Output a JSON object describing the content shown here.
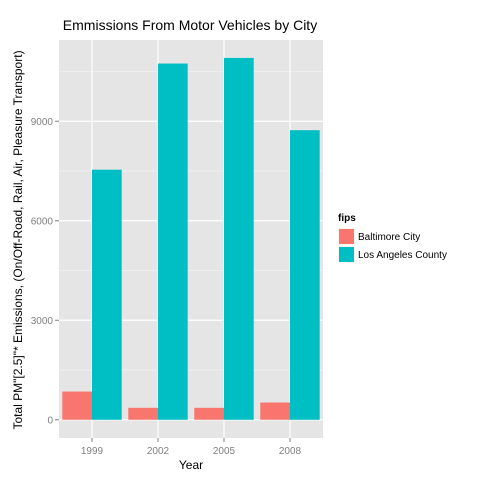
{
  "chart_data": {
    "type": "bar",
    "title": "Emmissions From Motor Vehicles by City",
    "xlabel": "Year",
    "ylabel": "Total PM\"[2.5]\"* Emissions, (On/Off-Road, Rail, Air, Pleasure Transport)",
    "categories": [
      "1999",
      "2002",
      "2005",
      "2008"
    ],
    "series": [
      {
        "name": "Baltimore City",
        "color": "#F8766D",
        "values": [
          850,
          360,
          360,
          520
        ]
      },
      {
        "name": "Los Angeles County",
        "color": "#00BFC4",
        "values": [
          7540,
          10740,
          10910,
          8730
        ]
      }
    ],
    "yticks": [
      0,
      3000,
      6000,
      9000
    ],
    "ylim": [
      -550,
      11450
    ],
    "grid": true,
    "panel_background": "#E5E5E5",
    "grid_color": "#FFFFFF",
    "legend": {
      "title": "fips",
      "position": "right"
    }
  }
}
